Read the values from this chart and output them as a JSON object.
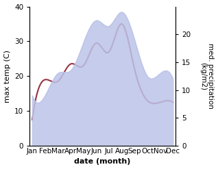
{
  "months": [
    "Jan",
    "Feb",
    "Mar",
    "Apr",
    "May",
    "Jun",
    "Jul",
    "Aug",
    "Sep",
    "Oct",
    "Nov",
    "Dec"
  ],
  "month_x": [
    0,
    1,
    2,
    3,
    4,
    5,
    6,
    7,
    8,
    9,
    10,
    11
  ],
  "temp_max": [
    7.5,
    19.0,
    18.5,
    23.5,
    23.0,
    29.5,
    27.0,
    35.0,
    22.0,
    13.0,
    12.5,
    12.5
  ],
  "precip": [
    9.0,
    9.0,
    13.0,
    13.5,
    18.5,
    22.5,
    21.5,
    24.0,
    19.0,
    12.5,
    13.0,
    12.0
  ],
  "temp_color": "#993344",
  "precip_fill_color": "#bcc3e8",
  "ylim_left": [
    0,
    40
  ],
  "ylim_right": [
    0,
    25
  ],
  "xlabel": "date (month)",
  "ylabel_left": "max temp (C)",
  "ylabel_right": "med. precipitation\n(kg/m2)",
  "label_fontsize": 8,
  "tick_fontsize": 7.5
}
